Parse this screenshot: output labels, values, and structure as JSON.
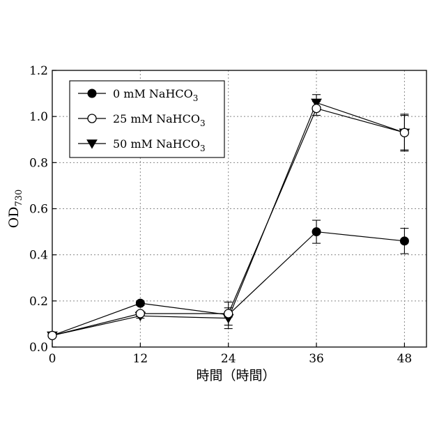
{
  "chart_data": {
    "type": "line",
    "title": "",
    "xlabel": "時間（時間）",
    "ylabel": "OD",
    "ylabel_sub": "730",
    "x": [
      0,
      12,
      24,
      36,
      48
    ],
    "x_ticks": [
      "0",
      "12",
      "24",
      "36",
      "48"
    ],
    "y_ticks": [
      "0.0",
      "0.2",
      "0.4",
      "0.6",
      "0.8",
      "1.0",
      "1.2"
    ],
    "xlim": [
      0,
      51
    ],
    "ylim": [
      0,
      1.2
    ],
    "grid": true,
    "legend_position": "top-left",
    "series": [
      {
        "name": "0 mM NaHCO",
        "name_sub": "3",
        "marker": "filled-circle",
        "values": [
          0.05,
          0.19,
          0.14,
          0.5,
          0.46
        ],
        "errors": [
          0.0,
          0.01,
          0.01,
          0.05,
          0.055
        ]
      },
      {
        "name": "25 mM NaHCO",
        "name_sub": "3",
        "marker": "open-circle",
        "values": [
          0.05,
          0.145,
          0.145,
          1.035,
          0.93
        ],
        "errors": [
          0.0,
          0.01,
          0.05,
          0.03,
          0.08
        ]
      },
      {
        "name": "50 mM NaHCO",
        "name_sub": "3",
        "marker": "filled-triangle-down",
        "values": [
          0.05,
          0.135,
          0.125,
          1.06,
          0.93
        ],
        "errors": [
          0.0,
          0.01,
          0.045,
          0.035,
          0.075
        ]
      }
    ],
    "colors": {
      "line": "#000000",
      "grid": "#888888"
    }
  }
}
